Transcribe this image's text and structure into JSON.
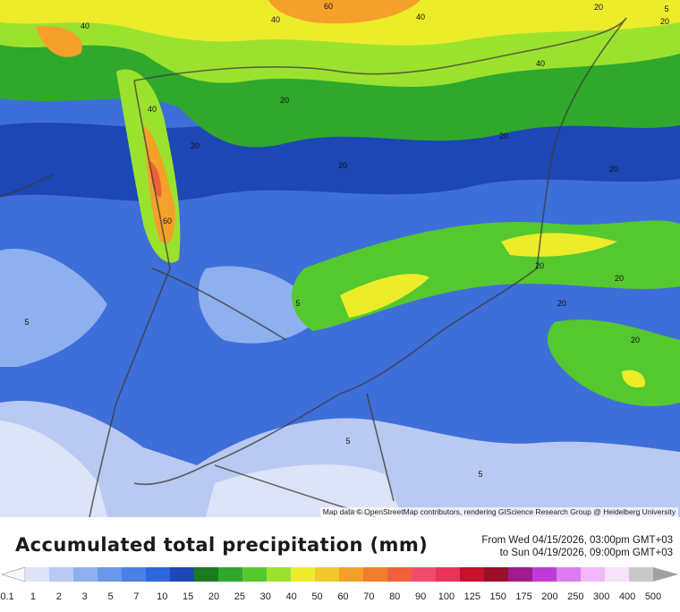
{
  "map": {
    "attribution": "Map data © OpenStreetMap contributors, rendering GIScience Research Group @ Heidelberg University",
    "contour_labels": [
      "40",
      "60",
      "40",
      "40",
      "20",
      "40",
      "20",
      "40",
      "20",
      "20",
      "20",
      "20",
      "20",
      "60",
      "20",
      "20",
      "5",
      "20",
      "20",
      "5",
      "5",
      "5",
      "5"
    ]
  },
  "header": {
    "title": "Accumulated total precipitation (mm)",
    "period_from": "From Wed 04/15/2026, 03:00pm GMT+03",
    "period_to": "to Sun 04/19/2026, 09:00pm GMT+03"
  },
  "legend": {
    "ticks": [
      "0.1",
      "1",
      "2",
      "3",
      "5",
      "7",
      "10",
      "15",
      "20",
      "25",
      "30",
      "40",
      "50",
      "60",
      "70",
      "80",
      "90",
      "100",
      "125",
      "150",
      "175",
      "200",
      "250",
      "300",
      "400",
      "500"
    ],
    "colors": [
      "#dde4f7",
      "#b9c9f2",
      "#8fb0ee",
      "#6b97ea",
      "#4a7fe6",
      "#2f66da",
      "#1d47b4",
      "#1b7a1d",
      "#2fa82c",
      "#55c82f",
      "#9be22f",
      "#ecec2a",
      "#f0c82c",
      "#f5a029",
      "#f07d2c",
      "#f0603c",
      "#f04c6c",
      "#e8325a",
      "#c8102a",
      "#9a0f2a",
      "#a01a8e",
      "#c03ad8",
      "#dc7cf0",
      "#f0b8f6",
      "#f5e4f8",
      "#c8c8c8"
    ]
  }
}
